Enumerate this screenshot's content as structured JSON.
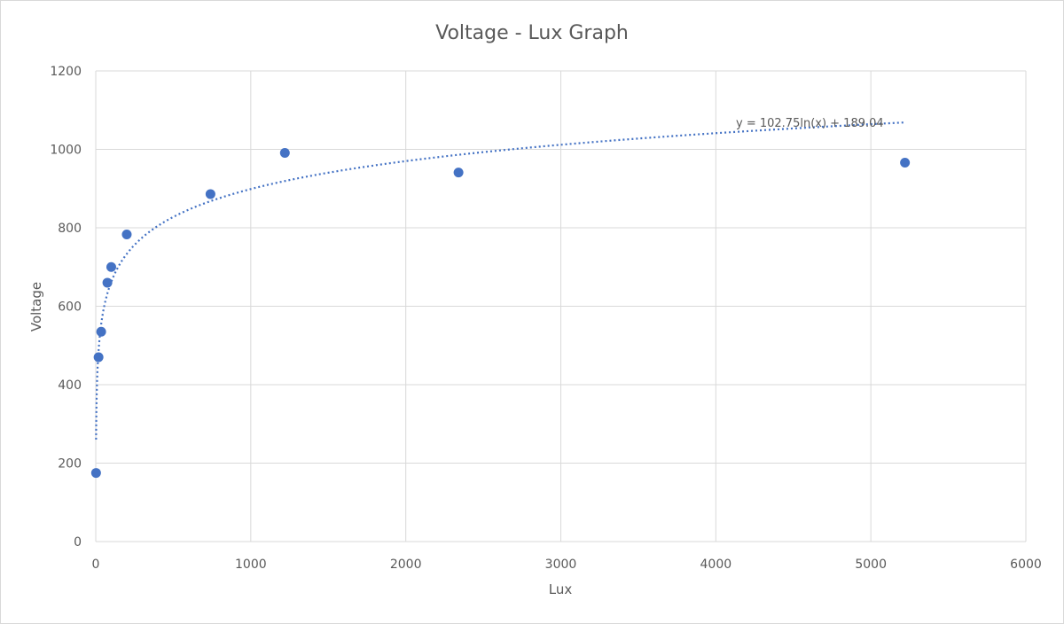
{
  "chart_data": {
    "type": "scatter",
    "title": "Voltage - Lux Graph",
    "xlabel": "Lux",
    "ylabel": "Voltage",
    "xlim": [
      0,
      6000
    ],
    "ylim": [
      0,
      1200
    ],
    "xticks": [
      0,
      1000,
      2000,
      3000,
      4000,
      5000,
      6000
    ],
    "yticks": [
      0,
      200,
      400,
      600,
      800,
      1000,
      1200
    ],
    "grid": true,
    "legend": "none",
    "color": "#4472C4",
    "points": [
      {
        "x": 2,
        "y": 175
      },
      {
        "x": 18,
        "y": 470
      },
      {
        "x": 35,
        "y": 535
      },
      {
        "x": 75,
        "y": 660
      },
      {
        "x": 100,
        "y": 700
      },
      {
        "x": 200,
        "y": 783
      },
      {
        "x": 740,
        "y": 886
      },
      {
        "x": 1220,
        "y": 991
      },
      {
        "x": 2340,
        "y": 941
      },
      {
        "x": 5220,
        "y": 966
      }
    ],
    "trendline": {
      "type": "logarithmic",
      "a": 102.75,
      "b": 189.04,
      "x_range": [
        2,
        5220
      ],
      "equation": "y = 102.75ln(x) + 189.04"
    }
  }
}
